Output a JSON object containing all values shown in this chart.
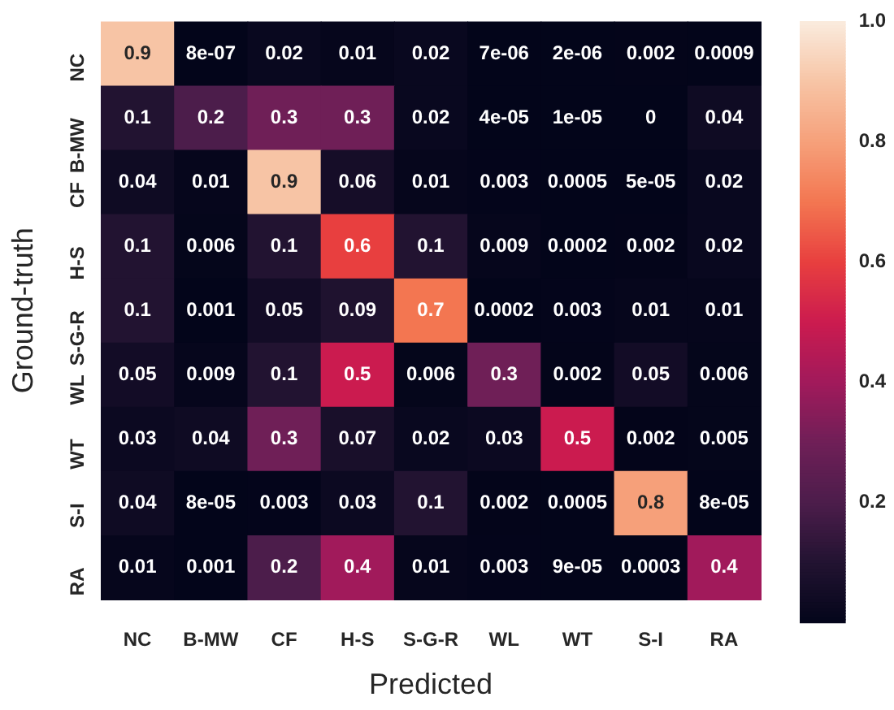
{
  "chart_data": {
    "type": "heatmap",
    "xlabel": "Predicted",
    "ylabel": "Ground-truth",
    "categories": [
      "NC",
      "B-MW",
      "CF",
      "H-S",
      "S-G-R",
      "WL",
      "WT",
      "S-I",
      "RA"
    ],
    "y_categories": [
      "NC",
      "B-MW",
      "CF",
      "H-S",
      "S-G-R",
      "WL",
      "WT",
      "S-I",
      "RA"
    ],
    "cells": [
      [
        0.9,
        8e-07,
        0.02,
        0.01,
        0.02,
        7e-06,
        2e-06,
        0.002,
        0.0009
      ],
      [
        0.1,
        0.2,
        0.3,
        0.3,
        0.02,
        4e-05,
        1e-05,
        0,
        0.04
      ],
      [
        0.04,
        0.01,
        0.9,
        0.06,
        0.01,
        0.003,
        0.0005,
        5e-05,
        0.02
      ],
      [
        0.1,
        0.006,
        0.1,
        0.6,
        0.1,
        0.009,
        0.0002,
        0.002,
        0.02
      ],
      [
        0.1,
        0.001,
        0.05,
        0.09,
        0.7,
        0.0002,
        0.003,
        0.01,
        0.01
      ],
      [
        0.05,
        0.009,
        0.1,
        0.5,
        0.006,
        0.3,
        0.002,
        0.05,
        0.006
      ],
      [
        0.03,
        0.04,
        0.3,
        0.07,
        0.02,
        0.03,
        0.5,
        0.002,
        0.005
      ],
      [
        0.04,
        8e-05,
        0.003,
        0.03,
        0.1,
        0.002,
        0.0005,
        0.8,
        8e-05
      ],
      [
        0.01,
        0.001,
        0.2,
        0.4,
        0.01,
        0.003,
        9e-05,
        0.0003,
        0.4
      ]
    ],
    "cell_labels": [
      [
        "0.9",
        "8e-07",
        "0.02",
        "0.01",
        "0.02",
        "7e-06",
        "2e-06",
        "0.002",
        "0.0009"
      ],
      [
        "0.1",
        "0.2",
        "0.3",
        "0.3",
        "0.02",
        "4e-05",
        "1e-05",
        "0",
        "0.04"
      ],
      [
        "0.04",
        "0.01",
        "0.9",
        "0.06",
        "0.01",
        "0.003",
        "0.0005",
        "5e-05",
        "0.02"
      ],
      [
        "0.1",
        "0.006",
        "0.1",
        "0.6",
        "0.1",
        "0.009",
        "0.0002",
        "0.002",
        "0.02"
      ],
      [
        "0.1",
        "0.001",
        "0.05",
        "0.09",
        "0.7",
        "0.0002",
        "0.003",
        "0.01",
        "0.01"
      ],
      [
        "0.05",
        "0.009",
        "0.1",
        "0.5",
        "0.006",
        "0.3",
        "0.002",
        "0.05",
        "0.006"
      ],
      [
        "0.03",
        "0.04",
        "0.3",
        "0.07",
        "0.02",
        "0.03",
        "0.5",
        "0.002",
        "0.005"
      ],
      [
        "0.04",
        "8e-05",
        "0.003",
        "0.03",
        "0.1",
        "0.002",
        "0.0005",
        "0.8",
        "8e-05"
      ],
      [
        "0.01",
        "0.001",
        "0.2",
        "0.4",
        "0.01",
        "0.003",
        "9e-05",
        "0.0003",
        "0.4"
      ]
    ],
    "clim": [
      0,
      1
    ],
    "cticks": [
      0.2,
      0.4,
      0.6,
      0.8,
      {
        "value": 1,
        "label": "1.0"
      }
    ]
  }
}
